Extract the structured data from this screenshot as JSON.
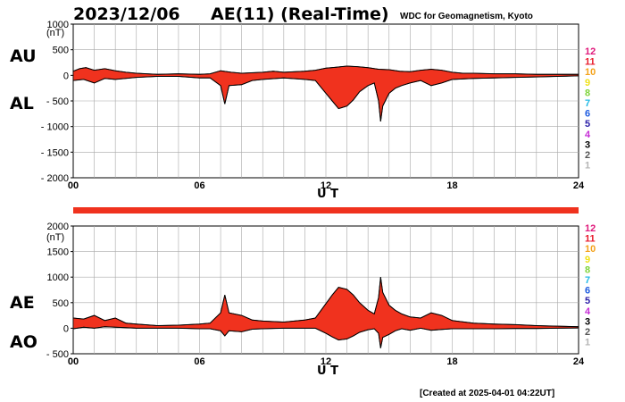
{
  "header": {
    "date": "2023/12/06",
    "title": "AE(11) (Real-Time)",
    "source": "WDC for Geomagnetism, Kyoto"
  },
  "footer": "[Created at 2025-04-01 04:22UT]",
  "hour_legend": {
    "labels": [
      "12",
      "11",
      "10",
      "9",
      "8",
      "7",
      "6",
      "5",
      "4",
      "3",
      "2",
      "1"
    ],
    "colors": [
      "#e0197b",
      "#e8192a",
      "#f4a21a",
      "#f0e21a",
      "#7fd33a",
      "#22b9e6",
      "#1d5be0",
      "#2b1fa8",
      "#c52bd6",
      "#000000",
      "#555555",
      "#b5b5b5"
    ]
  },
  "chart_data": [
    {
      "type": "area",
      "panel": "AU/AL",
      "unit": "(nT)",
      "labels": {
        "upper": "AU",
        "lower": "AL"
      },
      "xlabel": "U T",
      "x_ticks": [
        "00",
        "06",
        "12",
        "18",
        "24"
      ],
      "y_ticks": [
        "1000",
        "500",
        "0",
        "- 500",
        "- 1000",
        "- 1500",
        "- 2000"
      ],
      "ylim": [
        -2000,
        1000
      ],
      "xlim": [
        0,
        24
      ],
      "grid": true,
      "fill_color": "#f0321e",
      "series": [
        {
          "values": [
            [
              0.0,
              80
            ],
            [
              0.3,
              130
            ],
            [
              0.6,
              150
            ],
            [
              1.0,
              100
            ],
            [
              1.5,
              130
            ],
            [
              2.0,
              90
            ],
            [
              2.5,
              60
            ],
            [
              3.0,
              40
            ],
            [
              3.5,
              30
            ],
            [
              4.0,
              20
            ],
            [
              5.0,
              30
            ],
            [
              6.0,
              20
            ],
            [
              6.5,
              30
            ],
            [
              7.0,
              90
            ],
            [
              7.5,
              60
            ],
            [
              8.0,
              40
            ],
            [
              9.0,
              60
            ],
            [
              9.5,
              80
            ],
            [
              10.0,
              60
            ],
            [
              11.0,
              80
            ],
            [
              11.5,
              100
            ],
            [
              12.0,
              140
            ],
            [
              12.5,
              160
            ],
            [
              13.0,
              180
            ],
            [
              13.5,
              170
            ],
            [
              14.0,
              150
            ],
            [
              14.5,
              120
            ],
            [
              15.0,
              110
            ],
            [
              15.5,
              80
            ],
            [
              16.0,
              70
            ],
            [
              16.5,
              100
            ],
            [
              17.0,
              120
            ],
            [
              17.5,
              100
            ],
            [
              18.0,
              60
            ],
            [
              18.5,
              40
            ],
            [
              19.0,
              40
            ],
            [
              20.0,
              30
            ],
            [
              21.0,
              30
            ],
            [
              22.0,
              20
            ],
            [
              23.0,
              20
            ],
            [
              24.0,
              20
            ]
          ]
        },
        {
          "values": [
            [
              0.0,
              -100
            ],
            [
              0.5,
              -80
            ],
            [
              1.0,
              -150
            ],
            [
              1.5,
              -60
            ],
            [
              2.0,
              -80
            ],
            [
              3.0,
              -40
            ],
            [
              4.0,
              -20
            ],
            [
              5.0,
              -20
            ],
            [
              6.0,
              -50
            ],
            [
              6.5,
              -50
            ],
            [
              7.0,
              -200
            ],
            [
              7.2,
              -560
            ],
            [
              7.4,
              -200
            ],
            [
              8.0,
              -180
            ],
            [
              8.5,
              -100
            ],
            [
              9.0,
              -80
            ],
            [
              10.0,
              -50
            ],
            [
              11.0,
              -80
            ],
            [
              11.5,
              -100
            ],
            [
              12.0,
              -350
            ],
            [
              12.3,
              -500
            ],
            [
              12.6,
              -650
            ],
            [
              13.0,
              -600
            ],
            [
              13.3,
              -480
            ],
            [
              13.6,
              -320
            ],
            [
              14.0,
              -200
            ],
            [
              14.3,
              -150
            ],
            [
              14.5,
              -500
            ],
            [
              14.6,
              -900
            ],
            [
              14.7,
              -600
            ],
            [
              15.0,
              -350
            ],
            [
              15.3,
              -250
            ],
            [
              15.6,
              -200
            ],
            [
              16.0,
              -150
            ],
            [
              16.5,
              -100
            ],
            [
              17.0,
              -200
            ],
            [
              17.5,
              -150
            ],
            [
              18.0,
              -80
            ],
            [
              19.0,
              -60
            ],
            [
              20.0,
              -50
            ],
            [
              21.0,
              -40
            ],
            [
              22.0,
              -30
            ],
            [
              23.0,
              -20
            ],
            [
              24.0,
              -10
            ]
          ]
        }
      ]
    },
    {
      "type": "area",
      "panel": "AE/AO",
      "unit": "(nT)",
      "labels": {
        "upper": "AE",
        "lower": "AO"
      },
      "xlabel": "U T",
      "x_ticks": [
        "00",
        "06",
        "12",
        "18",
        "24"
      ],
      "y_ticks": [
        "2000",
        "1500",
        "1000",
        "500",
        "0",
        "- 500"
      ],
      "ylim": [
        -500,
        2000
      ],
      "xlim": [
        0,
        24
      ],
      "grid": true,
      "fill_color": "#f0321e",
      "series": [
        {
          "values": [
            [
              0.0,
              200
            ],
            [
              0.5,
              180
            ],
            [
              1.0,
              250
            ],
            [
              1.5,
              150
            ],
            [
              2.0,
              200
            ],
            [
              2.5,
              100
            ],
            [
              3.0,
              80
            ],
            [
              4.0,
              50
            ],
            [
              5.0,
              60
            ],
            [
              6.0,
              80
            ],
            [
              6.5,
              100
            ],
            [
              7.0,
              300
            ],
            [
              7.2,
              650
            ],
            [
              7.4,
              300
            ],
            [
              8.0,
              250
            ],
            [
              8.5,
              160
            ],
            [
              9.0,
              140
            ],
            [
              10.0,
              120
            ],
            [
              11.0,
              160
            ],
            [
              11.5,
              200
            ],
            [
              12.0,
              480
            ],
            [
              12.3,
              650
            ],
            [
              12.6,
              800
            ],
            [
              13.0,
              760
            ],
            [
              13.3,
              650
            ],
            [
              13.6,
              500
            ],
            [
              14.0,
              350
            ],
            [
              14.3,
              280
            ],
            [
              14.5,
              600
            ],
            [
              14.6,
              1000
            ],
            [
              14.7,
              700
            ],
            [
              15.0,
              450
            ],
            [
              15.3,
              350
            ],
            [
              15.6,
              280
            ],
            [
              16.0,
              220
            ],
            [
              16.5,
              200
            ],
            [
              17.0,
              300
            ],
            [
              17.5,
              250
            ],
            [
              18.0,
              150
            ],
            [
              19.0,
              100
            ],
            [
              20.0,
              80
            ],
            [
              21.0,
              70
            ],
            [
              22.0,
              50
            ],
            [
              23.0,
              40
            ],
            [
              24.0,
              30
            ]
          ]
        },
        {
          "values": [
            [
              0.0,
              -10
            ],
            [
              0.5,
              20
            ],
            [
              1.0,
              0
            ],
            [
              1.5,
              30
            ],
            [
              2.0,
              20
            ],
            [
              2.5,
              10
            ],
            [
              3.0,
              0
            ],
            [
              4.0,
              0
            ],
            [
              5.0,
              0
            ],
            [
              6.0,
              -10
            ],
            [
              6.5,
              -10
            ],
            [
              7.0,
              -50
            ],
            [
              7.2,
              -150
            ],
            [
              7.4,
              -50
            ],
            [
              8.0,
              -70
            ],
            [
              8.5,
              -20
            ],
            [
              9.0,
              -10
            ],
            [
              10.0,
              0
            ],
            [
              11.0,
              0
            ],
            [
              11.5,
              0
            ],
            [
              12.0,
              -100
            ],
            [
              12.3,
              -170
            ],
            [
              12.6,
              -230
            ],
            [
              13.0,
              -210
            ],
            [
              13.3,
              -150
            ],
            [
              13.6,
              -80
            ],
            [
              14.0,
              -30
            ],
            [
              14.3,
              -10
            ],
            [
              14.5,
              -100
            ],
            [
              14.6,
              -390
            ],
            [
              14.7,
              -180
            ],
            [
              15.0,
              -120
            ],
            [
              15.3,
              -50
            ],
            [
              15.6,
              -10
            ],
            [
              16.0,
              -40
            ],
            [
              16.5,
              0
            ],
            [
              17.0,
              -40
            ],
            [
              17.5,
              -25
            ],
            [
              18.0,
              -10
            ],
            [
              19.0,
              -10
            ],
            [
              20.0,
              -10
            ],
            [
              21.0,
              -5
            ],
            [
              22.0,
              -5
            ],
            [
              23.0,
              0
            ],
            [
              24.0,
              5
            ]
          ]
        }
      ]
    }
  ]
}
